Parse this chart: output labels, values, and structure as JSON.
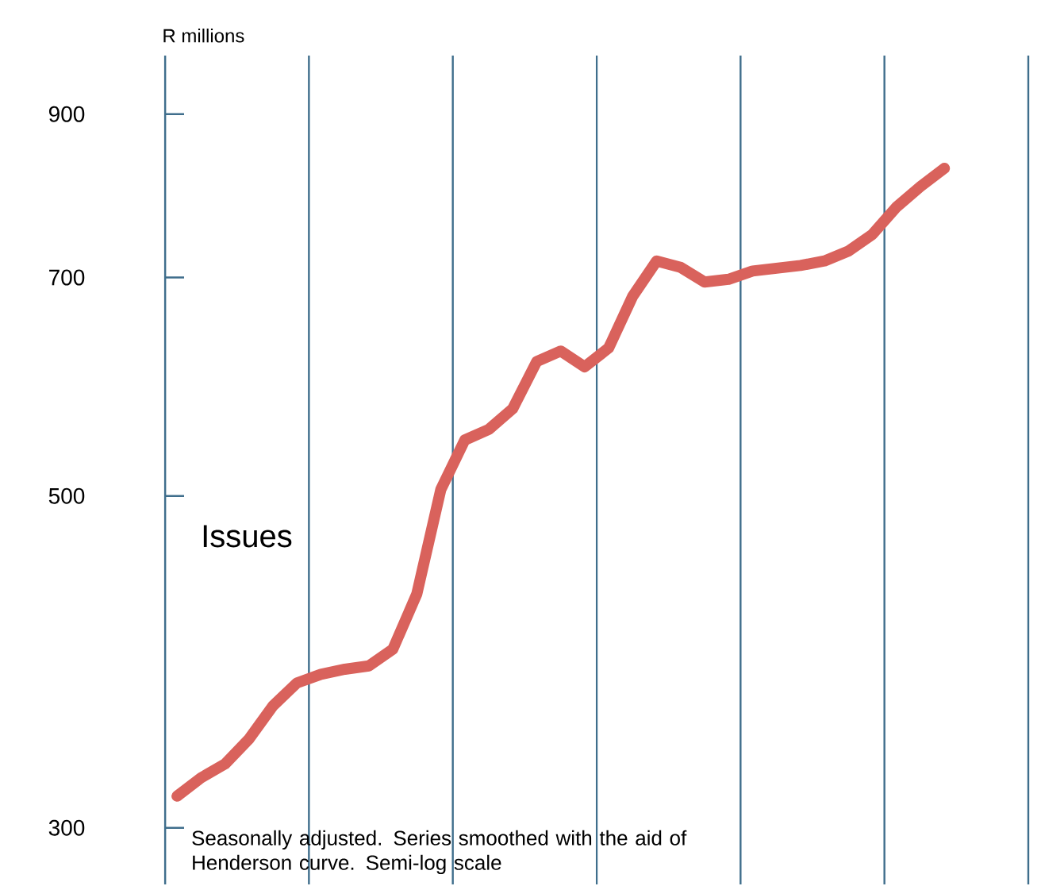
{
  "chart_data": {
    "type": "line",
    "ylabel": "R millions",
    "categories": [
      null,
      null,
      null,
      null,
      null,
      null,
      null,
      null,
      null,
      null,
      null,
      null,
      null,
      null,
      null,
      null,
      null,
      null,
      null,
      null,
      null,
      null,
      null,
      null,
      null,
      null,
      null,
      null,
      null,
      null,
      null,
      null,
      null,
      null,
      null,
      null
    ],
    "ylim": [
      275,
      985
    ],
    "yticks": [
      300,
      500,
      700,
      900
    ],
    "log": "y",
    "grid": "x",
    "tick_labels": "y",
    "marker": "none",
    "line_style": "solid",
    "annotations": [
      "Seasonally adjusted. Series smoothed with the aid of Henderson curve. Semi-log scale"
    ],
    "series": [
      {
        "name": "Issues",
        "color": "#d9625c",
        "values": [
          315,
          324,
          331,
          344,
          362,
          375,
          380,
          383,
          385,
          395,
          430,
          505,
          545,
          554,
          572,
          615,
          625,
          610,
          628,
          680,
          718,
          711,
          695,
          698,
          707,
          710,
          713,
          718,
          729,
          748,
          780,
          805,
          828,
          null,
          null,
          null
        ]
      }
    ]
  }
}
